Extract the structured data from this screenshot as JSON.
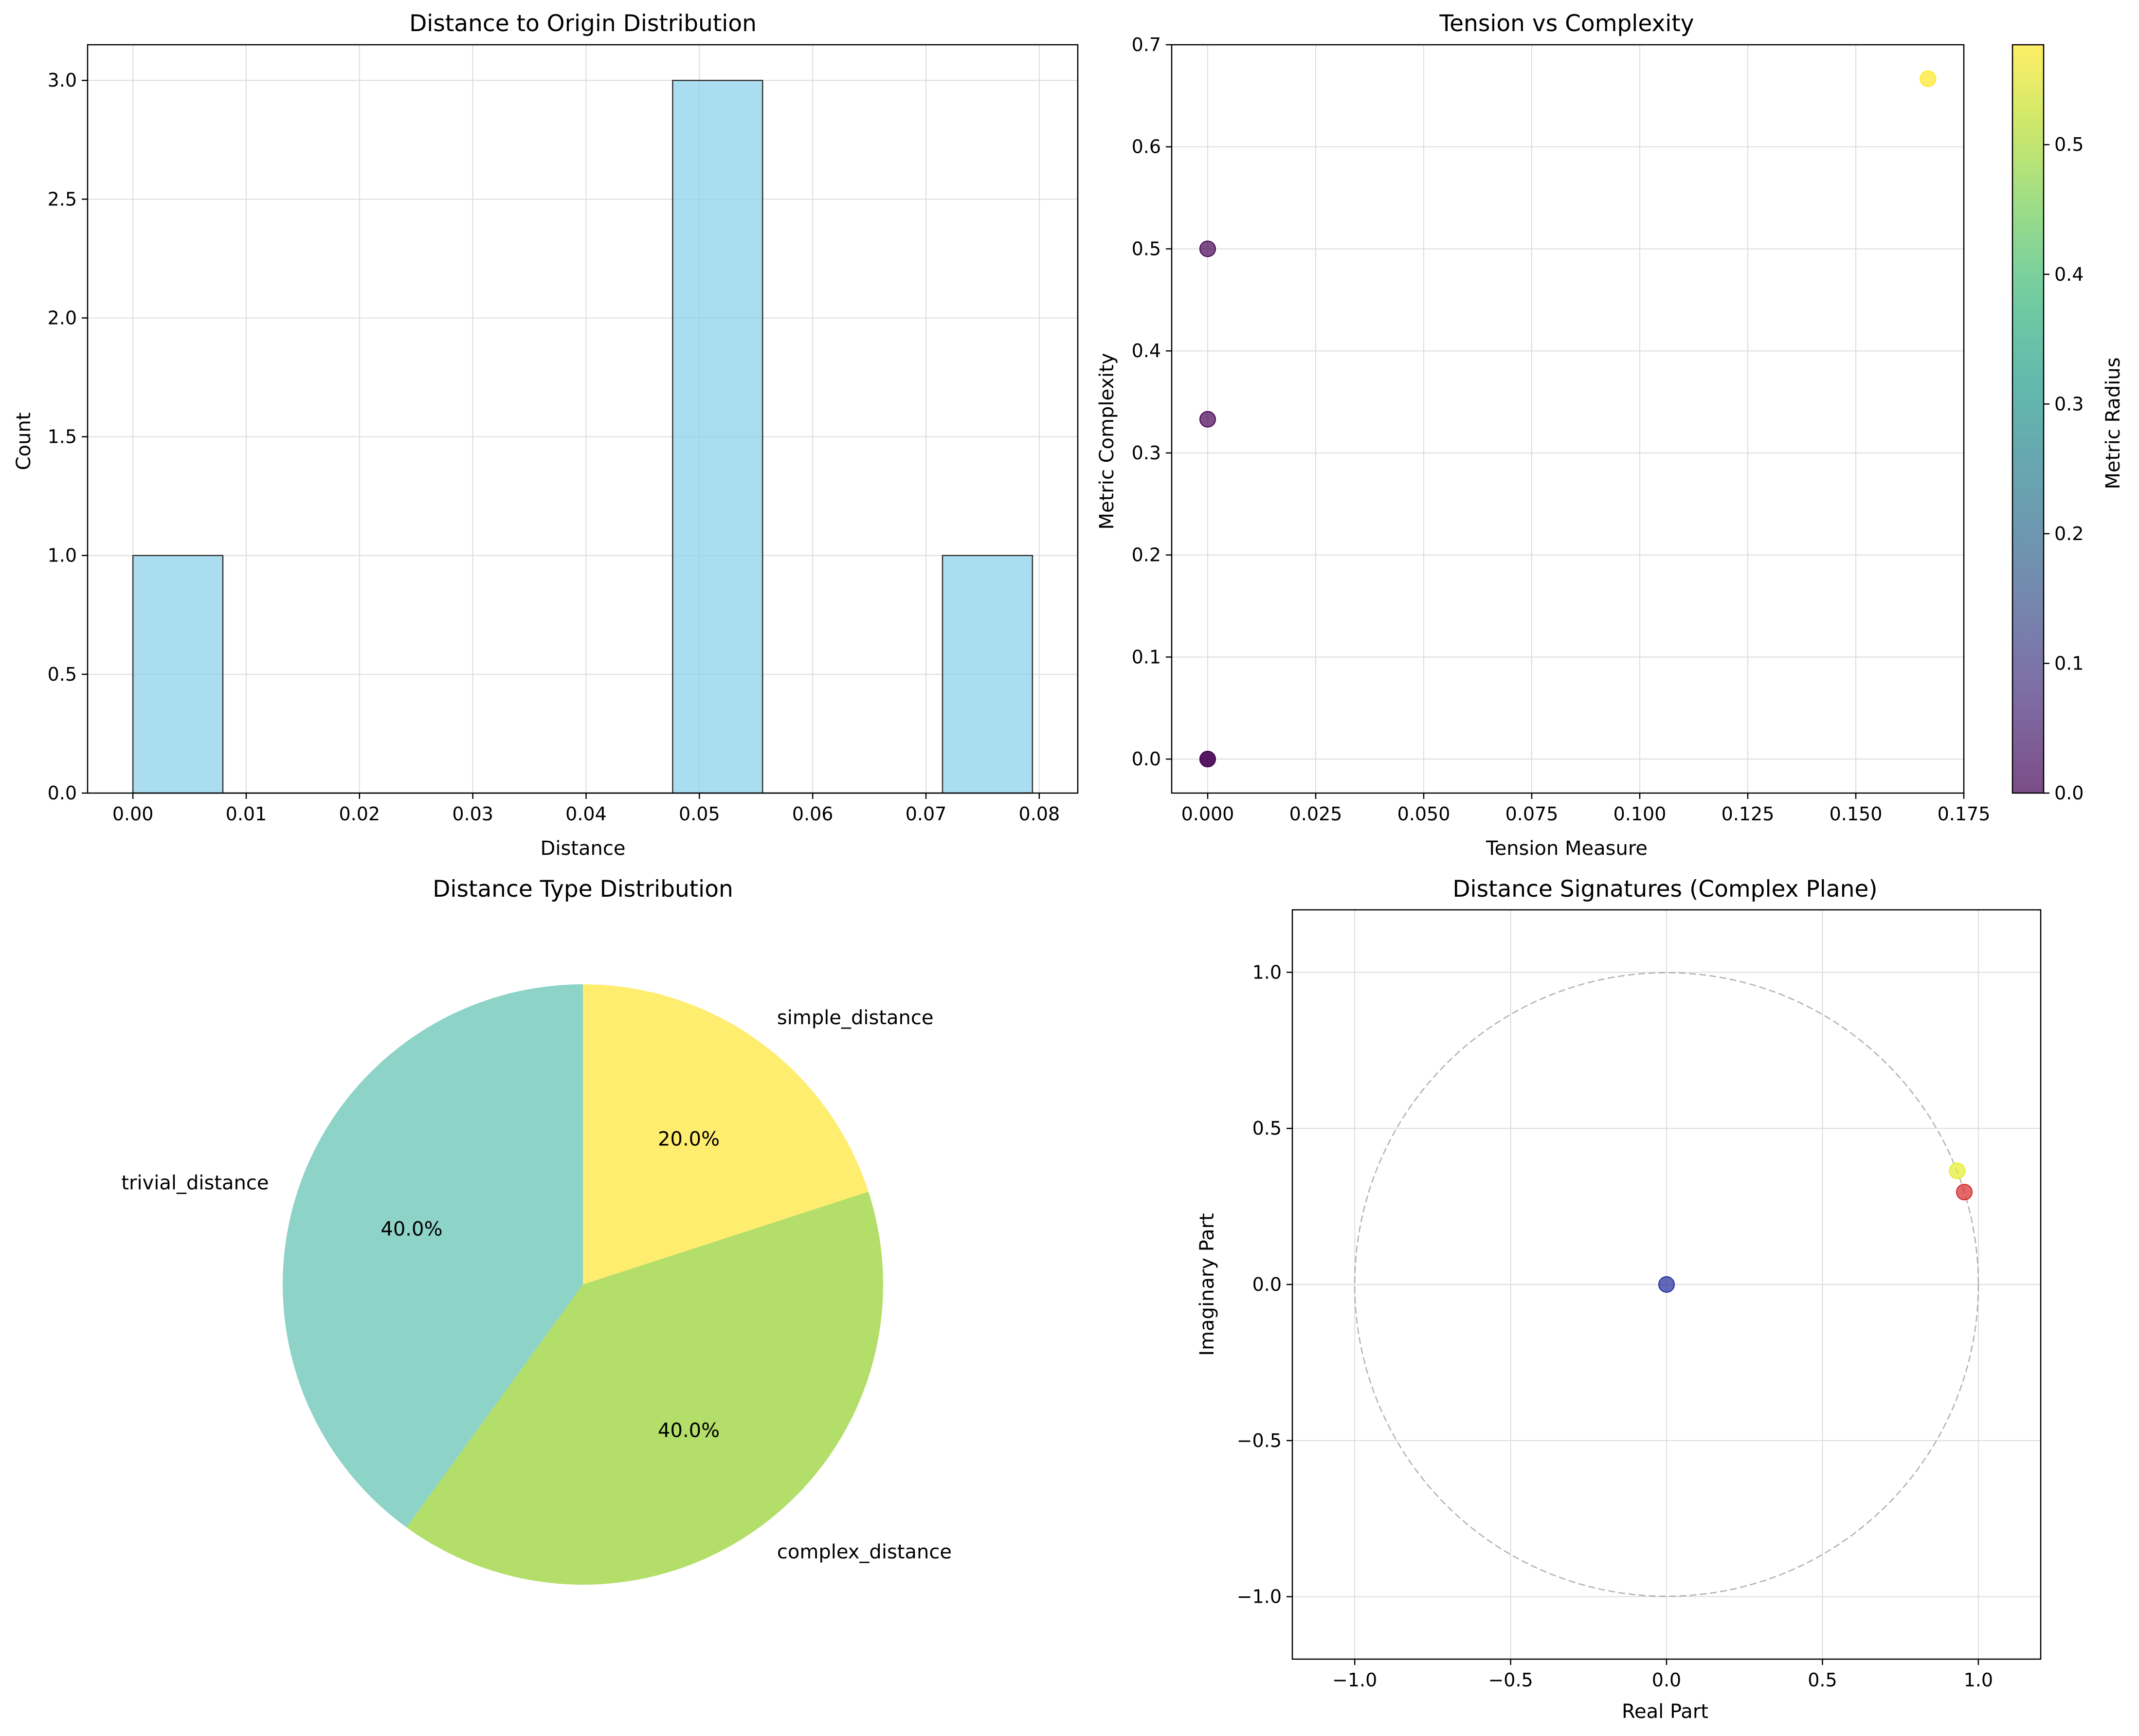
{
  "chart_data": [
    {
      "type": "bar",
      "title": "Distance to Origin Distribution",
      "xlabel": "Distance",
      "ylabel": "Count",
      "xlim": [
        -0.004,
        0.0834
      ],
      "ylim": [
        0,
        3.15
      ],
      "xticks": [
        0.0,
        0.01,
        0.02,
        0.03,
        0.04,
        0.05,
        0.06,
        0.07,
        0.08
      ],
      "xtick_labels": [
        "0.00",
        "0.01",
        "0.02",
        "0.03",
        "0.04",
        "0.05",
        "0.06",
        "0.07",
        "0.08"
      ],
      "yticks": [
        0.0,
        0.5,
        1.0,
        1.5,
        2.0,
        2.5,
        3.0
      ],
      "ytick_labels": [
        "0.0",
        "0.5",
        "1.0",
        "1.5",
        "2.0",
        "2.5",
        "3.0"
      ],
      "bins": [
        {
          "start": 0.0,
          "end": 0.00794,
          "count": 1
        },
        {
          "start": 0.00794,
          "end": 0.01588,
          "count": 0
        },
        {
          "start": 0.01588,
          "end": 0.02382,
          "count": 0
        },
        {
          "start": 0.02382,
          "end": 0.03176,
          "count": 0
        },
        {
          "start": 0.03176,
          "end": 0.0397,
          "count": 0
        },
        {
          "start": 0.0397,
          "end": 0.04764,
          "count": 0
        },
        {
          "start": 0.04764,
          "end": 0.05558,
          "count": 3
        },
        {
          "start": 0.05558,
          "end": 0.06352,
          "count": 0
        },
        {
          "start": 0.06352,
          "end": 0.07146,
          "count": 0
        },
        {
          "start": 0.07146,
          "end": 0.0794,
          "count": 1
        }
      ],
      "bar_color": "#87ceeb",
      "grid": true
    },
    {
      "type": "scatter",
      "title": "Tension vs Complexity",
      "xlabel": "Tension Measure",
      "ylabel": "Metric Complexity",
      "xlim": [
        -0.00833,
        0.175
      ],
      "ylim": [
        -0.0333,
        0.7
      ],
      "xticks": [
        0.0,
        0.025,
        0.05,
        0.075,
        0.1,
        0.125,
        0.15,
        0.175
      ],
      "xtick_labels": [
        "0.000",
        "0.025",
        "0.050",
        "0.075",
        "0.100",
        "0.125",
        "0.150",
        "0.175"
      ],
      "yticks": [
        0.0,
        0.1,
        0.2,
        0.3,
        0.4,
        0.5,
        0.6,
        0.7
      ],
      "ytick_labels": [
        "0.0",
        "0.1",
        "0.2",
        "0.3",
        "0.4",
        "0.5",
        "0.6",
        "0.7"
      ],
      "points": [
        {
          "x": 0.0,
          "y": 0.0,
          "c": 0.0
        },
        {
          "x": 0.0,
          "y": 0.0,
          "c": 0.0
        },
        {
          "x": 0.0,
          "y": 0.333,
          "c": 0.0
        },
        {
          "x": 0.0,
          "y": 0.5,
          "c": 0.0
        },
        {
          "x": 0.1667,
          "y": 0.6667,
          "c": 0.577
        }
      ],
      "colorbar": {
        "label": "Metric Radius",
        "range": [
          0.0,
          0.577
        ],
        "ticks": [
          0.0,
          0.1,
          0.2,
          0.3,
          0.4,
          0.5
        ],
        "tick_labels": [
          "0.0",
          "0.1",
          "0.2",
          "0.3",
          "0.4",
          "0.5"
        ],
        "colormap": "viridis"
      },
      "grid": true
    },
    {
      "type": "pie",
      "title": "Distance Type Distribution",
      "slices": [
        {
          "label": "simple_distance",
          "value": 20.0,
          "pct_label": "20.0%",
          "color": "#ffed6f"
        },
        {
          "label": "complex_distance",
          "value": 40.0,
          "pct_label": "40.0%",
          "color": "#b3de69"
        },
        {
          "label": "trivial_distance",
          "value": 40.0,
          "pct_label": "40.0%",
          "color": "#8dd3c7"
        }
      ],
      "start_angle": 90,
      "direction": "clockwise"
    },
    {
      "type": "scatter",
      "title": "Distance Signatures (Complex Plane)",
      "xlabel": "Real Part",
      "ylabel": "Imaginary Part",
      "xlim": [
        -1.2,
        1.2
      ],
      "ylim": [
        -1.2,
        1.2
      ],
      "xticks": [
        -1.0,
        -0.5,
        0.0,
        0.5,
        1.0
      ],
      "xtick_labels": [
        "−1.0",
        "−0.5",
        "0.0",
        "0.5",
        "1.0"
      ],
      "yticks": [
        -1.0,
        -0.5,
        0.0,
        0.5,
        1.0
      ],
      "ytick_labels": [
        "−1.0",
        "−0.5",
        "0.0",
        "0.5",
        "1.0"
      ],
      "points": [
        {
          "x": 0.0,
          "y": 0.0,
          "color": "#1f2a9c"
        },
        {
          "x": 0.932,
          "y": 0.364,
          "color": "#e5ee2c"
        },
        {
          "x": 0.955,
          "y": 0.296,
          "color": "#d62728"
        }
      ],
      "unit_circle": {
        "radius": 1.0,
        "style": "dashed",
        "color": "#9e9e9e"
      },
      "grid": true
    }
  ]
}
